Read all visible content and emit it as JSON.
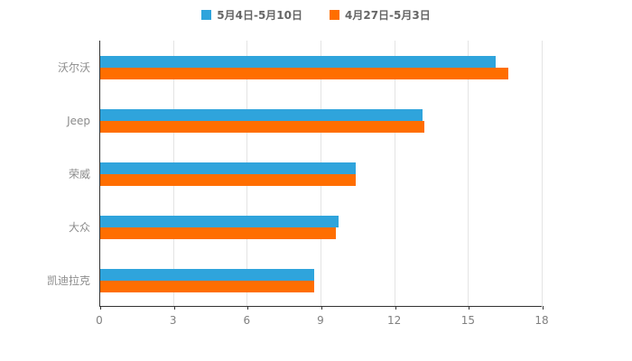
{
  "chart_data": {
    "type": "bar",
    "orientation": "horizontal",
    "title": "",
    "xlabel": "",
    "ylabel": "",
    "categories": [
      "沃尔沃",
      "Jeep",
      "荣威",
      "大众",
      "凯迪拉克"
    ],
    "series": [
      {
        "name": "5月4日-5月10日",
        "color": "#2FA4DC",
        "values": [
          16.1,
          13.1,
          10.4,
          9.7,
          8.7
        ]
      },
      {
        "name": "4月27日-5月3日",
        "color": "#FF6E00",
        "values": [
          16.6,
          13.2,
          10.4,
          9.6,
          8.7
        ]
      }
    ],
    "xlim": [
      0,
      18
    ],
    "xticks": [
      0,
      3,
      6,
      9,
      12,
      15,
      18
    ],
    "grid": true,
    "legend_position": "top"
  },
  "colors": {
    "background": "#ffffff",
    "axis_line": "#333333",
    "grid_line": "#e4e4e4",
    "tick_label": "#808080",
    "category_label": "#8c8c8c",
    "legend_text": "#666666"
  }
}
